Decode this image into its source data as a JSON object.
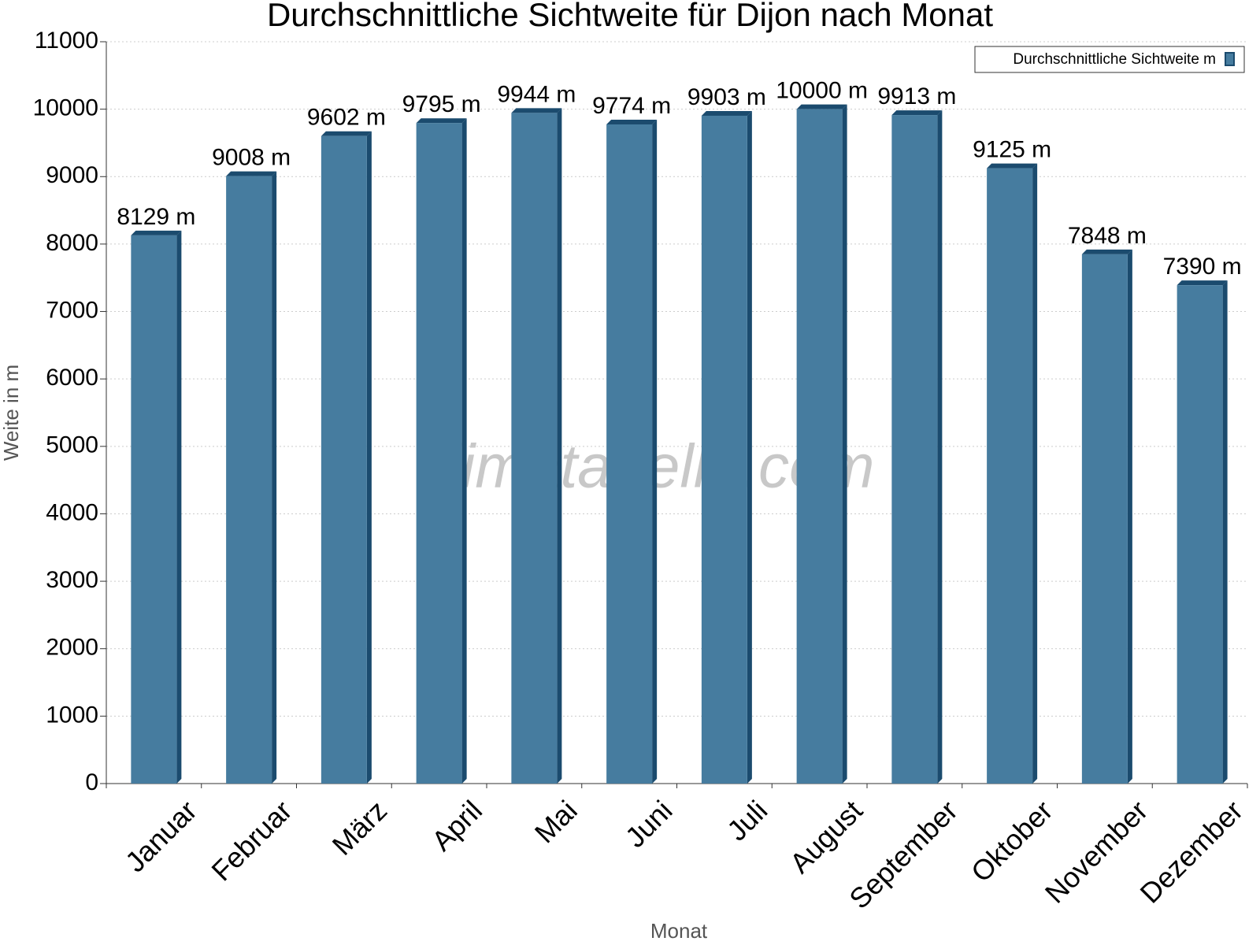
{
  "chart_data": {
    "type": "bar",
    "title": "Durchschnittliche Sichtweite für Dijon nach Monat",
    "x_label": "Monat",
    "y_label": "Weite in m",
    "watermark": "klimatabelle.com",
    "categories": [
      "Januar",
      "Februar",
      "März",
      "April",
      "Mai",
      "Juni",
      "Juli",
      "August",
      "September",
      "Oktober",
      "November",
      "Dezember"
    ],
    "series": [
      {
        "name": "Durchschnittliche Sichtweite m",
        "color": "#467c9f",
        "values": [
          8129,
          9008,
          9602,
          9795,
          9944,
          9774,
          9903,
          10000,
          9913,
          9125,
          7848,
          7390
        ],
        "value_labels": [
          "8129 m",
          "9008 m",
          "9602 m",
          "9795 m",
          "9944 m",
          "9774 m",
          "9903 m",
          "10000 m",
          "9913 m",
          "9125 m",
          "7848 m",
          "7390 m"
        ]
      }
    ],
    "ylim": [
      0,
      11000
    ],
    "yticks": [
      0,
      1000,
      2000,
      3000,
      4000,
      5000,
      6000,
      7000,
      8000,
      9000,
      10000,
      11000
    ],
    "grid": true,
    "legend": "top-right"
  }
}
